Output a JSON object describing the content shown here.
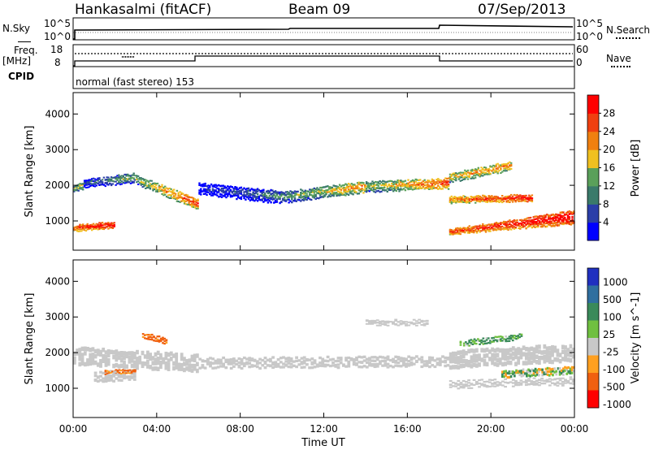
{
  "header": {
    "radar": "Hankasalmi (fitACF)",
    "beam": "Beam 09",
    "date": "07/Sep/2013"
  },
  "top_panels": {
    "nsky_label": "N.Sky",
    "nsearch_label": "N.Search",
    "noise_ticks_left": [
      "10^5",
      "10^0"
    ],
    "noise_ticks_right": [
      "10^5",
      "10^0"
    ],
    "freq_label_1": "Freq.",
    "freq_label_2": "[MHz]",
    "freq_ticks": [
      "18",
      "8"
    ],
    "nave_ticks": [
      "60",
      "0"
    ],
    "nave_label": "Nave",
    "cpid_label": "CPID",
    "cpid_text": "normal (fast stereo) 153"
  },
  "colors": {
    "power_scale": [
      "#0000ff",
      "#2a3ea8",
      "#3a7a6a",
      "#5aa05a",
      "#f0c020",
      "#f08010",
      "#f04010",
      "#ff0000"
    ],
    "velocity_scale": [
      "#2030c0",
      "#2f6f9f",
      "#3a8a5a",
      "#70c040",
      "#c8c8c8",
      "#ffa020",
      "#f06010",
      "#ff0000"
    ],
    "ground_scatter": "#c8c8c8"
  },
  "chart_data": [
    {
      "type": "heatmap",
      "title": "",
      "xlabel": "Time UT",
      "ylabel": "Slant Range [km]",
      "x_ticks": [
        "00:00",
        "04:00",
        "08:00",
        "12:00",
        "16:00",
        "20:00",
        "00:00"
      ],
      "xlim_hours": [
        0,
        24
      ],
      "y_ticks": [
        1000,
        2000,
        3000,
        4000
      ],
      "ylim": [
        180,
        4600
      ],
      "colorbar_label": "Power [dB]",
      "colorbar_ticks": [
        4,
        8,
        12,
        16,
        20,
        24,
        28
      ],
      "scatter_bands": [
        {
          "start": 0,
          "end": 0.5,
          "center": [
            1900,
            2000
          ],
          "width": [
            180,
            220
          ],
          "level": [
            16,
            20
          ]
        },
        {
          "start": 0.5,
          "end": 3,
          "center": [
            2050,
            2200
          ],
          "width": [
            220,
            280
          ],
          "level": [
            8,
            16
          ]
        },
        {
          "start": 3,
          "end": 6,
          "center": [
            2150,
            1450
          ],
          "width": [
            260,
            300
          ],
          "level": [
            16,
            28
          ]
        },
        {
          "start": 6,
          "end": 10,
          "center": [
            1900,
            1650
          ],
          "width": [
            320,
            360
          ],
          "level": [
            4,
            12
          ]
        },
        {
          "start": 10,
          "end": 14,
          "center": [
            1650,
            1950
          ],
          "width": [
            320,
            320
          ],
          "level": [
            12,
            24
          ]
        },
        {
          "start": 14,
          "end": 18,
          "center": [
            1950,
            2050
          ],
          "width": [
            300,
            300
          ],
          "level": [
            16,
            28
          ]
        },
        {
          "start": 18,
          "end": 21,
          "center": [
            2200,
            2550
          ],
          "width": [
            260,
            260
          ],
          "level": [
            20,
            24
          ]
        },
        {
          "start": 18,
          "end": 22,
          "center": [
            1600,
            1650
          ],
          "width": [
            180,
            180
          ],
          "level": [
            24,
            32
          ]
        },
        {
          "start": 18,
          "end": 24,
          "center": [
            700,
            1100
          ],
          "width": [
            140,
            400
          ],
          "level": [
            28,
            32
          ]
        },
        {
          "start": 0,
          "end": 2,
          "center": [
            800,
            900
          ],
          "width": [
            160,
            160
          ],
          "level": [
            28,
            32
          ]
        }
      ]
    },
    {
      "type": "heatmap",
      "title": "",
      "xlabel": "Time UT",
      "ylabel": "Slant Range [km]",
      "x_ticks": [
        "00:00",
        "04:00",
        "08:00",
        "12:00",
        "16:00",
        "20:00",
        "00:00"
      ],
      "xlim_hours": [
        0,
        24
      ],
      "y_ticks": [
        1000,
        2000,
        3000,
        4000
      ],
      "ylim": [
        180,
        4600
      ],
      "colorbar_label": "Velocity [m s^-1]",
      "colorbar_ticks": [
        1000,
        500,
        100,
        25,
        -25,
        -100,
        -500,
        -1000
      ],
      "ground_scatter_bands": [
        {
          "start": 0,
          "end": 6,
          "center": [
            1900,
            1700
          ],
          "width": [
            500,
            500
          ]
        },
        {
          "start": 1,
          "end": 3,
          "center": [
            1300,
            1400
          ],
          "width": [
            300,
            300
          ]
        },
        {
          "start": 6,
          "end": 18,
          "center": [
            1700,
            1750
          ],
          "width": [
            300,
            300
          ]
        },
        {
          "start": 14,
          "end": 17,
          "center": [
            2850,
            2850
          ],
          "width": [
            120,
            120
          ]
        },
        {
          "start": 18,
          "end": 24,
          "center": [
            1800,
            2000
          ],
          "width": [
            500,
            500
          ]
        },
        {
          "start": 18,
          "end": 24,
          "center": [
            1100,
            1200
          ],
          "width": [
            200,
            200
          ]
        }
      ],
      "velocity_bands": [
        {
          "start": 3.3,
          "end": 4.5,
          "center": [
            2500,
            2300
          ],
          "width": [
            160,
            160
          ],
          "velocity": -200
        },
        {
          "start": 1.5,
          "end": 3,
          "center": [
            1450,
            1500
          ],
          "width": [
            100,
            100
          ],
          "velocity": -150
        },
        {
          "start": 18.5,
          "end": 21.5,
          "center": [
            2250,
            2450
          ],
          "width": [
            160,
            160
          ],
          "velocity": 150
        },
        {
          "start": 20.5,
          "end": 24,
          "center": [
            1400,
            1500
          ],
          "width": [
            220,
            220
          ],
          "velocity": 60
        }
      ]
    }
  ]
}
